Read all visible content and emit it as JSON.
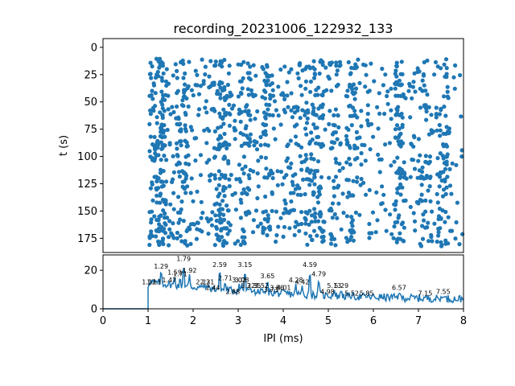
{
  "chart_data": [
    {
      "type": "scatter",
      "title": "recording_20231006_122932_133",
      "xlabel": "",
      "ylabel": "t (s)",
      "xlim": [
        0,
        8
      ],
      "ylim": [
        188,
        -8
      ],
      "y_inverted": true,
      "yticks": [
        0,
        25,
        50,
        75,
        100,
        125,
        150,
        175
      ],
      "yticklabels": [
        "0",
        "25",
        "50",
        "75",
        "100",
        "125",
        "150",
        "175"
      ],
      "color": "#1f77b4",
      "row_times": [
        14,
        18,
        26,
        33,
        37,
        42,
        46,
        55,
        60,
        63,
        72,
        77,
        82,
        88,
        91,
        100,
        105,
        113,
        118,
        121,
        128,
        135,
        142,
        150,
        155,
        160,
        166,
        170,
        175,
        180
      ],
      "peak_ipis": [
        1.29,
        1.79,
        2.59,
        3.15,
        4.59,
        2.71,
        3.65,
        4.28,
        4.79,
        5.13,
        5.52,
        6.57,
        7.15,
        7.55
      ],
      "note_points": "estimated dense raster of spike intervals"
    },
    {
      "type": "line",
      "xlabel": "IPI (ms)",
      "ylabel": "",
      "xlim": [
        0,
        8
      ],
      "ylim": [
        0,
        28
      ],
      "xticks": [
        0,
        1,
        2,
        3,
        4,
        5,
        6,
        7,
        8
      ],
      "xticklabels": [
        "0",
        "1",
        "2",
        "3",
        "4",
        "5",
        "6",
        "7",
        "8"
      ],
      "yticks": [
        0,
        20
      ],
      "yticklabels": [
        "0",
        "20"
      ],
      "color": "#1f77b4",
      "peaks": [
        {
          "x": 1.02,
          "y": 12,
          "label": "1.02"
        },
        {
          "x": 1.13,
          "y": 12,
          "label": "1.13"
        },
        {
          "x": 1.29,
          "y": 20,
          "label": "1.29"
        },
        {
          "x": 1.47,
          "y": 13,
          "label": "1.47"
        },
        {
          "x": 1.59,
          "y": 17,
          "label": "1.59"
        },
        {
          "x": 1.71,
          "y": 16,
          "label": "1.71"
        },
        {
          "x": 1.79,
          "y": 24,
          "label": "1.79"
        },
        {
          "x": 1.92,
          "y": 18,
          "label": "1.92"
        },
        {
          "x": 2.22,
          "y": 12,
          "label": "2.22"
        },
        {
          "x": 2.31,
          "y": 12,
          "label": "2.31"
        },
        {
          "x": 2.44,
          "y": 9,
          "label": "2.44"
        },
        {
          "x": 2.59,
          "y": 21,
          "label": "2.59"
        },
        {
          "x": 2.71,
          "y": 14,
          "label": "2.71"
        },
        {
          "x": 2.88,
          "y": 7,
          "label": "2.88"
        },
        {
          "x": 3.02,
          "y": 13,
          "label": "3.02"
        },
        {
          "x": 3.08,
          "y": 13,
          "label": "3.08"
        },
        {
          "x": 3.15,
          "y": 21,
          "label": "3.15"
        },
        {
          "x": 3.22,
          "y": 10,
          "label": "3.22"
        },
        {
          "x": 3.35,
          "y": 10,
          "label": "3.35"
        },
        {
          "x": 3.52,
          "y": 10,
          "label": "3.52"
        },
        {
          "x": 3.65,
          "y": 15,
          "label": "3.65"
        },
        {
          "x": 3.73,
          "y": 8,
          "label": "3.73"
        },
        {
          "x": 3.86,
          "y": 9,
          "label": "3.86"
        },
        {
          "x": 4.01,
          "y": 9,
          "label": "4.01"
        },
        {
          "x": 4.28,
          "y": 13,
          "label": "4.28"
        },
        {
          "x": 4.42,
          "y": 12,
          "label": "4.42"
        },
        {
          "x": 4.59,
          "y": 21,
          "label": "4.59"
        },
        {
          "x": 4.79,
          "y": 16,
          "label": "4.79"
        },
        {
          "x": 4.98,
          "y": 7,
          "label": "4.98"
        },
        {
          "x": 5.13,
          "y": 10,
          "label": "5.13"
        },
        {
          "x": 5.29,
          "y": 10,
          "label": "5.29"
        },
        {
          "x": 5.52,
          "y": 6,
          "label": "5.52"
        },
        {
          "x": 5.85,
          "y": 6,
          "label": "5.85"
        },
        {
          "x": 6.57,
          "y": 9,
          "label": "6.57"
        },
        {
          "x": 7.15,
          "y": 6,
          "label": "7.15"
        },
        {
          "x": 7.55,
          "y": 7,
          "label": "7.55"
        }
      ]
    }
  ]
}
